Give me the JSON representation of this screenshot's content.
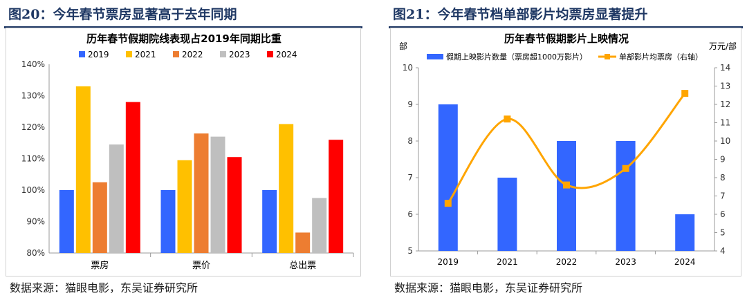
{
  "left": {
    "figure_label": "图20：今年春节票房显著高于去年同期",
    "source": "数据来源：猫眼电影，东吴证券研究所"
  },
  "right": {
    "figure_label": "图21：今年春节档单部影片均票房显著提升",
    "source": "数据来源：猫眼电影，东吴证券研究所"
  },
  "chart_data": [
    {
      "type": "bar",
      "title": "历年春节假期院线表现占2019年同期比重",
      "categories": [
        "票房",
        "票价",
        "总出票"
      ],
      "series": [
        {
          "name": "2019",
          "color": "#3366ff",
          "values": [
            100,
            100,
            100
          ]
        },
        {
          "name": "2021",
          "color": "#ffc000",
          "values": [
            133,
            109.5,
            121
          ]
        },
        {
          "name": "2022",
          "color": "#ed7d31",
          "values": [
            102.5,
            118,
            86.5
          ]
        },
        {
          "name": "2023",
          "color": "#bfbfbf",
          "values": [
            114.5,
            117,
            97.5
          ]
        },
        {
          "name": "2024",
          "color": "#ff0000",
          "values": [
            128,
            110.5,
            116
          ]
        }
      ],
      "ylim": [
        80,
        140
      ],
      "yticks": [
        "80%",
        "90%",
        "100%",
        "110%",
        "120%",
        "130%",
        "140%"
      ],
      "ytick_values": [
        80,
        90,
        100,
        110,
        120,
        130,
        140
      ],
      "xlabel": "",
      "ylabel": "",
      "legend": "top"
    },
    {
      "type": "bar+line",
      "title": "历年春节假期影片上映情况",
      "categories": [
        "2019",
        "2021",
        "2022",
        "2023",
        "2024"
      ],
      "left_unit": "部",
      "right_unit": "万元/部",
      "bar_series": {
        "name": "假期上映影片数量（票房超1000万影片）",
        "color": "#3366ff",
        "values": [
          9,
          7,
          8,
          8,
          6
        ]
      },
      "line_series": {
        "name": "单部影片均票房（右轴）",
        "color": "#ffa500",
        "values": [
          6.6,
          11.2,
          7.6,
          8.5,
          12.6
        ]
      },
      "ylim_left": [
        5,
        10
      ],
      "yticks_left": [
        "5",
        "6",
        "7",
        "8",
        "9",
        "10"
      ],
      "ylim_right": [
        4,
        14
      ],
      "yticks_right": [
        "4",
        "5",
        "6",
        "7",
        "8",
        "9",
        "10",
        "11",
        "12",
        "13",
        "14"
      ],
      "legend": "top"
    }
  ]
}
